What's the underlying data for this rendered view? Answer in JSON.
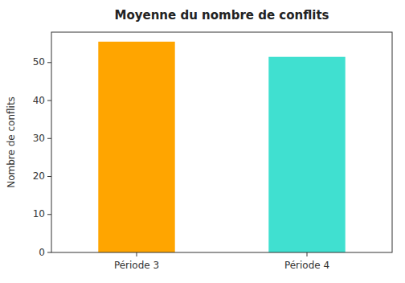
{
  "chart_data": {
    "type": "bar",
    "title": "Moyenne du nombre de conflits",
    "ylabel": "Nombre de conflits",
    "categories": [
      "Période 3",
      "Période 4"
    ],
    "values": [
      55.5,
      51.5
    ],
    "colors": [
      "#FFA500",
      "#40E0D0"
    ],
    "ylim": [
      0,
      58
    ],
    "yticks": [
      0,
      10,
      20,
      30,
      40,
      50
    ],
    "grid": false
  }
}
